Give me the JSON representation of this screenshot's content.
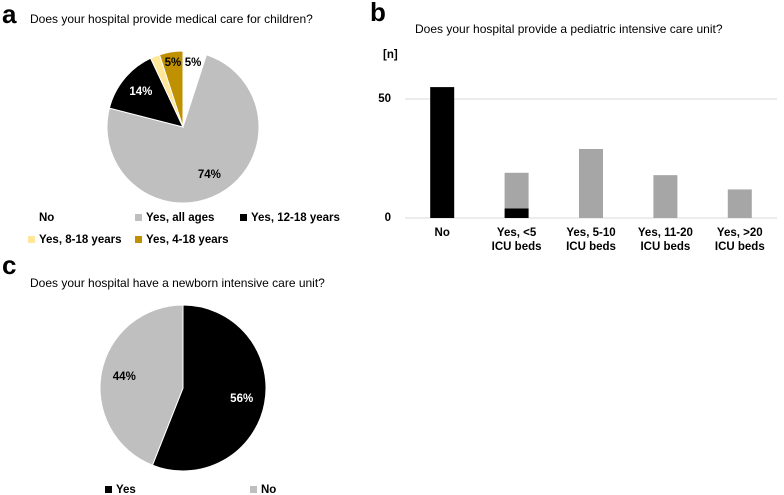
{
  "chart_data": [
    {
      "type": "pie",
      "panel": "a",
      "title": "Does your hospital provide medical care for children?",
      "categories": [
        "No",
        "Yes, all ages",
        "Yes, 12-18 years",
        "Yes, 8-18 years",
        "Yes, 4-18 years"
      ],
      "values": [
        5,
        74,
        14,
        2,
        5
      ],
      "value_labels": [
        "5%",
        "74%",
        "14%",
        null,
        "5%"
      ],
      "colors": [
        "#ffffff",
        "#bfbfbf",
        "#000000",
        "#ffe699",
        "#bf9000"
      ]
    },
    {
      "type": "bar",
      "panel": "b",
      "title": "Does your hospital provide a pediatric intensive care unit?",
      "ylabel": "[n]",
      "categories": [
        "No",
        "Yes, <5 ICU beds",
        "Yes, 5-10 ICU beds",
        "Yes, 11-20 ICU beds",
        "Yes, >20 ICU beds"
      ],
      "series": [
        {
          "color": "#000000",
          "values": [
            55,
            4,
            null,
            null,
            null
          ]
        },
        {
          "color": "#a6a6a6",
          "values": [
            null,
            15,
            29,
            18,
            12
          ]
        }
      ],
      "stacked": true,
      "ylim": [
        0,
        60
      ],
      "yticks": [
        0,
        50
      ],
      "grid": true
    },
    {
      "type": "pie",
      "panel": "c",
      "title": "Does your hospital have a newborn intensive care unit?",
      "categories": [
        "Yes",
        "No"
      ],
      "values": [
        56,
        44
      ],
      "value_labels": [
        "56%",
        "44%"
      ],
      "colors": [
        "#000000",
        "#bfbfbf"
      ]
    }
  ]
}
